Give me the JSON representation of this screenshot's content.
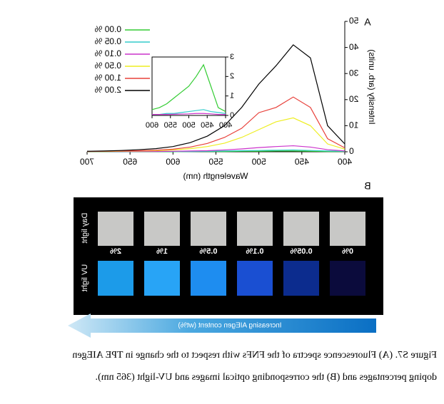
{
  "chart_data": [
    {
      "type": "line",
      "panel_label": "A",
      "xlabel": "Wavelength (nm)",
      "ylabel": "Intensity (arb. units)",
      "x": [
        400,
        420,
        440,
        460,
        480,
        500,
        520,
        540,
        560,
        580,
        600,
        620,
        640,
        660,
        680,
        700
      ],
      "series": [
        {
          "name": "0.00 %",
          "color": "#33cc33",
          "values": [
            0.1,
            0.1,
            0.2,
            0.3,
            0.3,
            0.2,
            0.2,
            0.1,
            0.1,
            0.1,
            0,
            0,
            0,
            0,
            0,
            0
          ]
        },
        {
          "name": "0.05 %",
          "color": "#33cccc",
          "values": [
            0.2,
            0.3,
            0.5,
            0.7,
            0.6,
            0.5,
            0.4,
            0.3,
            0.2,
            0.1,
            0.1,
            0.1,
            0.1,
            0,
            0,
            0
          ]
        },
        {
          "name": "0.10 %",
          "color": "#cc33cc",
          "values": [
            0.3,
            0.8,
            1.8,
            2.3,
            2,
            1.6,
            1.1,
            0.7,
            0.4,
            0.3,
            0.2,
            0.1,
            0.1,
            0.1,
            0.1,
            0.1
          ]
        },
        {
          "name": "0.50 %",
          "color": "#eeee22",
          "values": [
            1,
            3,
            10,
            13,
            11.5,
            8.5,
            5.5,
            3.3,
            2,
            1.2,
            0.7,
            0.4,
            0.3,
            0.2,
            0.1,
            0.1
          ]
        },
        {
          "name": "1.00 %",
          "color": "#e8403a",
          "values": [
            1.5,
            5,
            17,
            21,
            17,
            15,
            9,
            5.5,
            3.2,
            1.8,
            1,
            0.6,
            0.4,
            0.3,
            0.2,
            0.1
          ]
        },
        {
          "name": "2.00 %",
          "color": "#000000",
          "values": [
            3,
            10,
            36,
            41,
            33,
            26,
            17,
            10,
            6,
            3.5,
            2,
            1.2,
            0.8,
            0.5,
            0.3,
            0.2
          ]
        }
      ],
      "xlim": [
        400,
        700
      ],
      "xticks": [
        400,
        450,
        500,
        550,
        600,
        650,
        700
      ],
      "ylim": [
        0,
        50
      ],
      "yticks": [
        0,
        10,
        20,
        30,
        40,
        50
      ]
    },
    {
      "type": "line",
      "x": [
        400,
        420,
        440,
        460,
        480,
        500,
        520,
        540,
        560,
        580,
        600
      ],
      "series": [
        {
          "color": "#33cc33",
          "values": [
            0.2,
            0.4,
            1.5,
            2.6,
            2,
            1.5,
            1.2,
            0.9,
            0.6,
            0.4,
            0.3
          ]
        },
        {
          "color": "#33cccc",
          "values": [
            0.1,
            0.15,
            0.2,
            0.3,
            0.25,
            0.2,
            0.15,
            0.1,
            0.1,
            0.05,
            0.05
          ]
        },
        {
          "color": "#cc33cc",
          "values": [
            0.05,
            0.05,
            0.08,
            0.1,
            0.1,
            0.08,
            0.07,
            0.06,
            0.05,
            0.05,
            0.05
          ]
        }
      ],
      "xlim": [
        400,
        600
      ],
      "xticks": [
        400,
        450,
        500,
        550,
        600
      ],
      "ylim": [
        0,
        3
      ],
      "yticks": [
        0,
        1,
        2,
        3
      ]
    }
  ],
  "panel_b": {
    "label": "B",
    "row_labels": [
      "Day light",
      "UV light"
    ],
    "samples": [
      "0%",
      "0.05%",
      "0.1%",
      "0.5%",
      "1%",
      "2%"
    ],
    "day_color": "#c8c8c6",
    "uv_colors": [
      "#0b0b3c",
      "#0c2c8e",
      "#1a4fd2",
      "#1e8df0",
      "#28a4f6",
      "#1c9be9"
    ],
    "arrow_text": "Increasing AIEgen content (wt%)"
  },
  "caption": [
    "Figure S7. (A) Fluorescence spectra of the FNFs with respect to the change in TPE AIEgen",
    "doping percentages and (B) the corresponding optical images and UV-light (365 nm)."
  ]
}
